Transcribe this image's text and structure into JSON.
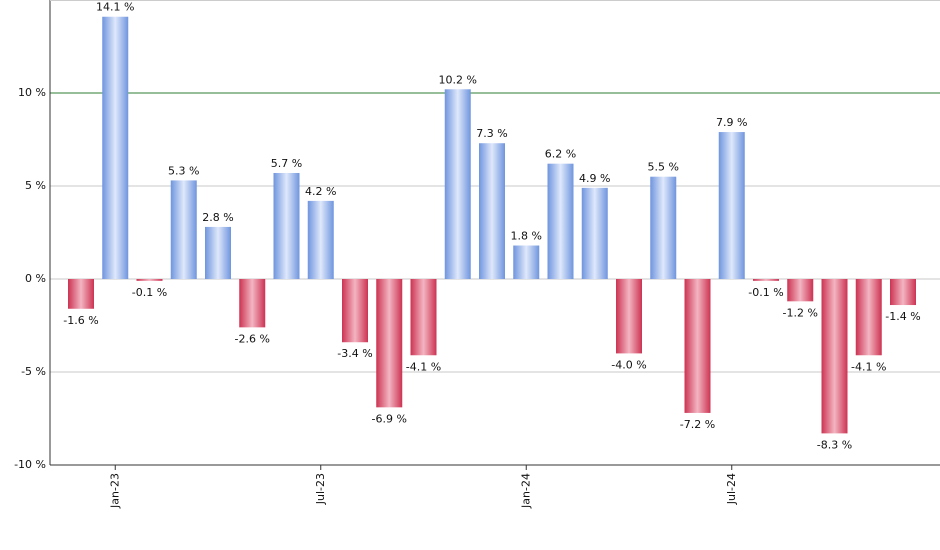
{
  "chart_data": {
    "type": "bar",
    "categories": [
      null,
      "Jan-23",
      null,
      null,
      null,
      null,
      null,
      "Jul-23",
      null,
      null,
      null,
      null,
      null,
      "Jan-24",
      null,
      null,
      null,
      null,
      null,
      "Jul-24",
      null,
      null,
      null,
      null,
      null
    ],
    "values": [
      -1.6,
      14.1,
      -0.1,
      5.3,
      2.8,
      -2.6,
      5.7,
      4.2,
      -3.4,
      -6.9,
      -4.1,
      10.2,
      7.3,
      1.8,
      6.2,
      4.9,
      -4.0,
      5.5,
      -7.2,
      7.9,
      -0.1,
      -1.2,
      -8.3,
      -4.1,
      -1.4
    ],
    "value_labels": [
      "-1.6 %",
      "14.1 %",
      "-0.1 %",
      "5.3 %",
      "2.8 %",
      "-2.6 %",
      "5.7 %",
      "4.2 %",
      "-3.4 %",
      "-6.9 %",
      "-4.1 %",
      "10.2 %",
      "7.3 %",
      "1.8 %",
      "6.2 %",
      "4.9 %",
      "-4.0 %",
      "5.5 %",
      "-7.2 %",
      "7.9 %",
      "-0.1 %",
      "-1.2 %",
      "-8.3 %",
      "-4.1 %",
      "-1.4 %"
    ],
    "positive_color": "#6f95de",
    "negative_color": "#cc3352",
    "ylim": [
      -10,
      15
    ],
    "yticks": [
      {
        "value": -10,
        "label": "-10 %"
      },
      {
        "value": -5,
        "label": "-5 %"
      },
      {
        "value": 0,
        "label": "0 %"
      },
      {
        "value": 5,
        "label": "5 %"
      },
      {
        "value": 10,
        "label": "10 %"
      }
    ],
    "grid": true,
    "highlight_line": {
      "value": 10,
      "color": "#2e7d32"
    }
  }
}
